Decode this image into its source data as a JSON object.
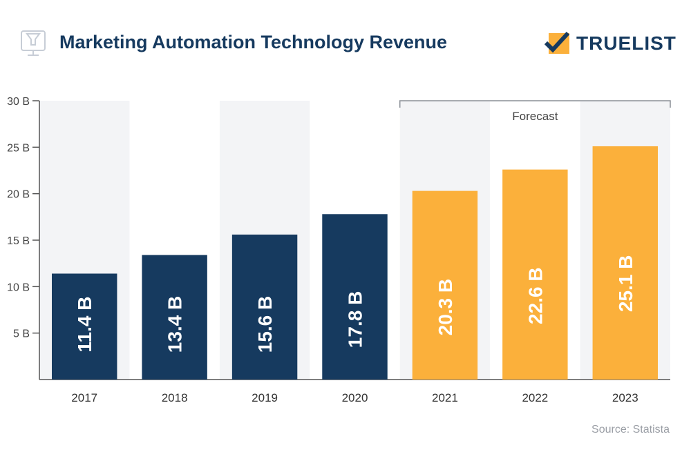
{
  "header": {
    "title": "Marketing Automation Technology Revenue",
    "logo_text": "TRUELIST"
  },
  "source": "Source: Statista",
  "colors": {
    "actual": "#163a5f",
    "forecast": "#fbb03b",
    "band": "#f3f4f6",
    "title": "#163a5f"
  },
  "chart_data": {
    "type": "bar",
    "title": "Marketing Automation Technology Revenue",
    "categories": [
      "2017",
      "2018",
      "2019",
      "2020",
      "2021",
      "2022",
      "2023"
    ],
    "values": [
      11.4,
      13.4,
      15.6,
      17.8,
      20.3,
      22.6,
      25.1
    ],
    "data_labels": [
      "11.4 B",
      "13.4 B",
      "15.6 B",
      "17.8 B",
      "20.3 B",
      "22.6 B",
      "25.1 B"
    ],
    "forecast": [
      false,
      false,
      false,
      false,
      true,
      true,
      true
    ],
    "annotation": "Forecast",
    "yticks": [
      5,
      10,
      15,
      20,
      25,
      30
    ],
    "ytick_labels": [
      "5 B",
      "10 B",
      "15 B",
      "20 B",
      "25 B",
      "30 B"
    ],
    "ylim": [
      0,
      30
    ],
    "xlabel": "",
    "ylabel": "",
    "unit": "B"
  }
}
